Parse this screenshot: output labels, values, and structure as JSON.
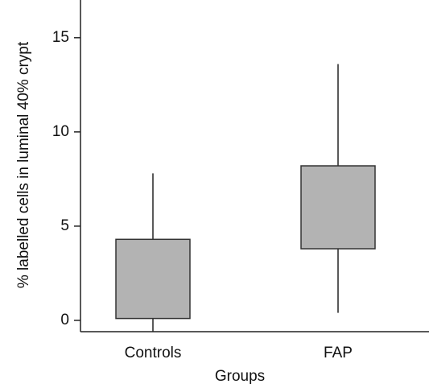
{
  "chart_data": {
    "type": "box",
    "y_label": "% labelled cells in luminal 40% crypt",
    "x_label": "Groups",
    "categories": [
      "Controls",
      "FAP"
    ],
    "whisker_low": [
      -0.6,
      0.4
    ],
    "q1": [
      0.1,
      3.8
    ],
    "q3": [
      4.3,
      8.2
    ],
    "whisker_high": [
      7.8,
      13.6
    ],
    "color": "#b3b3b3",
    "ylim": [
      -0.6,
      17
    ],
    "yticks": [
      0,
      5,
      10,
      15
    ]
  }
}
